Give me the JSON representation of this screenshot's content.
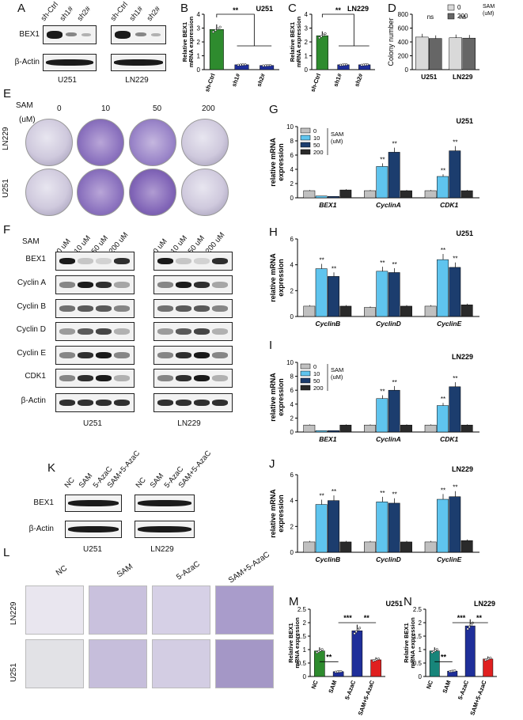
{
  "panels": {
    "A": "A",
    "B": "B",
    "C": "C",
    "D": "D",
    "E": "E",
    "F": "F",
    "G": "G",
    "H": "H",
    "I": "I",
    "J": "J",
    "K": "K",
    "L": "L",
    "M": "M",
    "N": "N"
  },
  "panelA": {
    "lanes": [
      "sh-Ctrl",
      "sh1#",
      "sh2#",
      "sh-Ctrl",
      "sh1#",
      "sh2#"
    ],
    "rows": [
      "BEX1",
      "β-Actin"
    ],
    "cells": [
      "U251",
      "LN229"
    ]
  },
  "panelE": {
    "sam_label": "SAM",
    "unit_label": "(uM)",
    "doses": [
      "0",
      "10",
      "50",
      "200"
    ],
    "rows": [
      "LN229",
      "U251"
    ]
  },
  "panelF": {
    "sam_label": "SAM",
    "doses": [
      "0 uM",
      "10 uM",
      "50 uM",
      "200 uM",
      "0 uM",
      "10 uM",
      "50 uM",
      "200 uM"
    ],
    "rows": [
      "BEX1",
      "Cyclin A",
      "Cyclin B",
      "Cyclin D",
      "Cyclin E",
      "CDK1",
      "β-Actin"
    ],
    "cells": [
      "U251",
      "LN229"
    ]
  },
  "panelK": {
    "lanes": [
      "NC",
      "SAM",
      "5-AzaC",
      "SAM+5-AzaC",
      "NC",
      "SAM",
      "5-AzaC",
      "SAM+5-AzaC"
    ],
    "rows": [
      "BEX1",
      "β-Actin"
    ],
    "cells": [
      "U251",
      "LN229"
    ]
  },
  "panelL": {
    "cols": [
      "NC",
      "SAM",
      "5-AzaC",
      "SAM+5-AzaC"
    ],
    "rows": [
      "LN229",
      "U251"
    ]
  },
  "chart_data": [
    {
      "id": "B",
      "type": "bar",
      "title": "U251",
      "ylabel": "Relative BEX1 mRNA expression",
      "categories": [
        "sh-Ctrl",
        "sh1#",
        "sh2#"
      ],
      "values": [
        2.9,
        0.35,
        0.3
      ],
      "ylim": [
        0,
        4
      ],
      "yticks": [
        0,
        1,
        2,
        3,
        4
      ],
      "colors": [
        "#2e8b2e",
        "#1f2f9a",
        "#1f2f9a"
      ],
      "significance": "**"
    },
    {
      "id": "C",
      "type": "bar",
      "title": "LN229",
      "ylabel": "Relative BEX1 mRNA expression",
      "categories": [
        "sh-Ctrl",
        "sh1#",
        "sh2#"
      ],
      "values": [
        2.45,
        0.35,
        0.35
      ],
      "ylim": [
        0,
        4
      ],
      "yticks": [
        0,
        1,
        2,
        3,
        4
      ],
      "colors": [
        "#2e8b2e",
        "#1f2f9a",
        "#1f2f9a"
      ],
      "significance": "**"
    },
    {
      "id": "D",
      "type": "bar",
      "ylabel": "Colony number",
      "categories": [
        "U251",
        "LN229"
      ],
      "series": [
        {
          "name": "0",
          "values": [
            470,
            460
          ]
        },
        {
          "name": "200",
          "values": [
            450,
            455
          ]
        }
      ],
      "ylim": [
        0,
        800
      ],
      "yticks": [
        0,
        200,
        400,
        600,
        800
      ],
      "legend_title": "SAM (uM)",
      "significance": "ns"
    },
    {
      "id": "G",
      "type": "bar",
      "title": "U251",
      "ylabel": "relative mRNA expression",
      "categories": [
        "BEX1",
        "CyclinA",
        "CDK1"
      ],
      "series": [
        {
          "name": "0",
          "values": [
            1,
            1,
            1
          ]
        },
        {
          "name": "10",
          "values": [
            0.25,
            4.4,
            3.0
          ]
        },
        {
          "name": "50",
          "values": [
            0.2,
            6.4,
            6.6
          ]
        },
        {
          "name": "200",
          "values": [
            1.1,
            1.0,
            1.0
          ]
        }
      ],
      "ylim": [
        0,
        10
      ],
      "yticks": [
        0,
        2,
        4,
        6,
        8,
        10
      ],
      "legend_title": "SAM (uM)"
    },
    {
      "id": "H",
      "type": "bar",
      "title": "U251",
      "ylabel": "relative mRNA expression",
      "categories": [
        "CyclinB",
        "CyclinD",
        "CyclinE"
      ],
      "series": [
        {
          "name": "0",
          "values": [
            0.8,
            0.7,
            0.8
          ]
        },
        {
          "name": "10",
          "values": [
            3.7,
            3.5,
            4.4
          ]
        },
        {
          "name": "50",
          "values": [
            3.1,
            3.4,
            3.8
          ]
        },
        {
          "name": "200",
          "values": [
            0.8,
            0.8,
            0.9
          ]
        }
      ],
      "ylim": [
        0,
        6
      ],
      "yticks": [
        0,
        2,
        4,
        6
      ]
    },
    {
      "id": "I",
      "type": "bar",
      "title": "LN229",
      "ylabel": "relative mRNA expression",
      "categories": [
        "BEX1",
        "CyclinA",
        "CDK1"
      ],
      "series": [
        {
          "name": "0",
          "values": [
            1,
            1,
            1
          ]
        },
        {
          "name": "10",
          "values": [
            0.2,
            4.8,
            3.8
          ]
        },
        {
          "name": "50",
          "values": [
            0.2,
            6.0,
            6.5
          ]
        },
        {
          "name": "200",
          "values": [
            1.0,
            1.0,
            1.0
          ]
        }
      ],
      "ylim": [
        0,
        10
      ],
      "yticks": [
        0,
        2,
        4,
        6,
        8,
        10
      ],
      "legend_title": "SAM (uM)"
    },
    {
      "id": "J",
      "type": "bar",
      "title": "LN229",
      "ylabel": "relative mRNA expression",
      "categories": [
        "CyclinB",
        "CyclinD",
        "CyclinE"
      ],
      "series": [
        {
          "name": "0",
          "values": [
            0.8,
            0.8,
            0.8
          ]
        },
        {
          "name": "10",
          "values": [
            3.7,
            3.9,
            4.1
          ]
        },
        {
          "name": "50",
          "values": [
            4.0,
            3.8,
            4.3
          ]
        },
        {
          "name": "200",
          "values": [
            0.8,
            0.8,
            0.9
          ]
        }
      ],
      "ylim": [
        0,
        6
      ],
      "yticks": [
        0,
        2,
        4,
        6
      ]
    },
    {
      "id": "M",
      "type": "bar",
      "title": "U251",
      "ylabel": "Relative BEX1 mRNA expression",
      "categories": [
        "NC",
        "SAM",
        "5-AzaC",
        "SAM+5-AzaC"
      ],
      "values": [
        0.95,
        0.18,
        1.7,
        0.62
      ],
      "ylim": [
        0,
        2.5
      ],
      "yticks": [
        0.0,
        0.5,
        1.0,
        1.5,
        2.0,
        2.5
      ],
      "colors": [
        "#2e8b2e",
        "#1f2f9a",
        "#1f2f9a",
        "#e02020"
      ],
      "significance": [
        "**",
        "***",
        "**"
      ]
    },
    {
      "id": "N",
      "type": "bar",
      "title": "LN229",
      "ylabel": "Relative BEX1 mRNA expression",
      "categories": [
        "NC",
        "SAM",
        "5-AzaC",
        "SAM+5-AzaC"
      ],
      "values": [
        0.95,
        0.2,
        1.88,
        0.65
      ],
      "ylim": [
        0,
        2.5
      ],
      "yticks": [
        0.0,
        0.5,
        1.0,
        1.5,
        2.0,
        2.5
      ],
      "colors": [
        "#17857a",
        "#1f2f9a",
        "#1f2f9a",
        "#e02020"
      ],
      "significance": [
        "**",
        "***",
        "**"
      ]
    }
  ],
  "legend_colors": {
    "0": "#c0c0c0",
    "10": "#5fc4ee",
    "50": "#1c3d6e",
    "200": "#2a2a2a"
  },
  "legendD_colors": {
    "0": "#d9d9d9",
    "200": "#666666"
  }
}
